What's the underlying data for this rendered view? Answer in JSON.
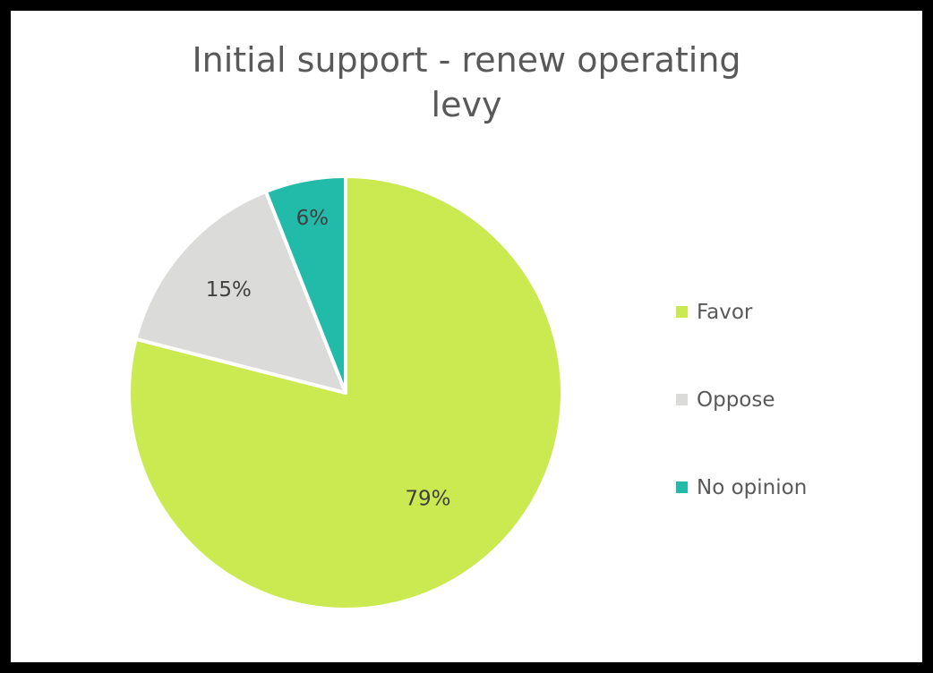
{
  "chart_data": {
    "type": "pie",
    "title": "Initial support - renew operating levy",
    "categories": [
      "Favor",
      "Oppose",
      "No opinion"
    ],
    "values": [
      79,
      15,
      6
    ],
    "labels": [
      "79%",
      "15%",
      "6%"
    ],
    "colors": [
      "#CBEA52",
      "#DBDBD9",
      "#22BBAA"
    ],
    "legend_position": "right"
  },
  "title_lines": [
    "Initial support - renew operating",
    "levy"
  ]
}
